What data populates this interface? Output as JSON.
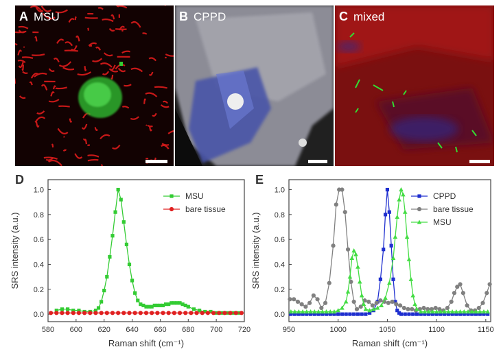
{
  "panels": {
    "A": {
      "letter": "A",
      "label": "MSU"
    },
    "B": {
      "letter": "B",
      "label": "CPPD"
    },
    "C": {
      "letter": "C",
      "label": "mixed"
    }
  },
  "colors": {
    "tissue_red": "#d21a1a",
    "msu_green": "#33cc33",
    "cppd_blue": "#5060c0",
    "bare_gray": "#808080",
    "bare_red": "#e02020"
  },
  "chart_data": [
    {
      "type": "line",
      "panel": "D",
      "xlabel": "Raman shift (cm⁻¹)",
      "ylabel": "SRS intensity (a.u.)",
      "xlim": [
        580,
        720
      ],
      "ylim": [
        -0.06,
        1.08
      ],
      "xticks": [
        580,
        600,
        620,
        640,
        660,
        680,
        700,
        720
      ],
      "yticks": [
        0.0,
        0.2,
        0.4,
        0.6,
        0.8,
        1.0
      ],
      "legend_position": "top-right",
      "series": [
        {
          "name": "MSU",
          "color": "#33cc33",
          "marker": "square",
          "x": [
            586,
            590,
            594,
            598,
            602,
            606,
            610,
            614,
            616,
            618,
            620,
            622,
            624,
            626,
            628,
            630,
            632,
            634,
            636,
            638,
            640,
            642,
            644,
            646,
            648,
            650,
            652,
            654,
            656,
            658,
            660,
            662,
            664,
            666,
            668,
            670,
            672,
            674,
            676,
            678,
            680,
            684,
            688,
            692,
            696,
            700,
            704,
            708,
            712,
            716
          ],
          "y": [
            0.03,
            0.04,
            0.04,
            0.03,
            0.03,
            0.02,
            0.02,
            0.03,
            0.05,
            0.1,
            0.19,
            0.3,
            0.46,
            0.63,
            0.82,
            1.0,
            0.92,
            0.74,
            0.56,
            0.4,
            0.27,
            0.17,
            0.11,
            0.08,
            0.07,
            0.06,
            0.06,
            0.06,
            0.07,
            0.07,
            0.07,
            0.07,
            0.08,
            0.08,
            0.09,
            0.09,
            0.09,
            0.09,
            0.08,
            0.07,
            0.06,
            0.04,
            0.03,
            0.02,
            0.02,
            0.01,
            0.01,
            0.01,
            0.01,
            0.01
          ]
        },
        {
          "name": "bare tissue",
          "color": "#e02020",
          "marker": "circle",
          "x": [
            582,
            586,
            590,
            594,
            598,
            602,
            606,
            610,
            614,
            618,
            622,
            626,
            630,
            634,
            638,
            642,
            646,
            650,
            654,
            658,
            662,
            666,
            670,
            674,
            678,
            682,
            686,
            690,
            694,
            698,
            702,
            706,
            710,
            714,
            718
          ],
          "y": [
            0.01,
            0.01,
            0.01,
            0.01,
            0.01,
            0.01,
            0.01,
            0.01,
            0.01,
            0.01,
            0.01,
            0.01,
            0.01,
            0.01,
            0.01,
            0.01,
            0.01,
            0.01,
            0.01,
            0.01,
            0.01,
            0.01,
            0.01,
            0.01,
            0.01,
            0.01,
            0.01,
            0.01,
            0.01,
            0.01,
            0.01,
            0.01,
            0.01,
            0.01,
            0.01
          ]
        }
      ]
    },
    {
      "type": "line",
      "panel": "E",
      "xlabel": "Raman shift (cm⁻¹)",
      "ylabel": "SRS intensity (a.u.)",
      "xlim": [
        950,
        1155
      ],
      "ylim": [
        -0.06,
        1.08
      ],
      "xticks": [
        950,
        1000,
        1050,
        1100,
        1150
      ],
      "yticks": [
        0.0,
        0.2,
        0.4,
        0.6,
        0.8,
        1.0
      ],
      "legend_position": "top-right",
      "series": [
        {
          "name": "CPPD",
          "color": "#1f2fcf",
          "marker": "square",
          "x": [
            952,
            956,
            960,
            964,
            968,
            972,
            976,
            980,
            984,
            988,
            992,
            996,
            1000,
            1004,
            1008,
            1012,
            1016,
            1020,
            1024,
            1028,
            1032,
            1036,
            1040,
            1043,
            1046,
            1048,
            1050,
            1052,
            1054,
            1056,
            1058,
            1060,
            1062,
            1064,
            1068,
            1072,
            1076,
            1080,
            1084,
            1088,
            1092,
            1096,
            1100,
            1104,
            1108,
            1112,
            1116,
            1120,
            1124,
            1128,
            1132,
            1136,
            1140,
            1144,
            1148,
            1152
          ],
          "y": [
            0.0,
            0.0,
            0.0,
            0.0,
            0.0,
            0.0,
            0.0,
            0.0,
            0.0,
            0.0,
            0.0,
            0.0,
            0.0,
            0.0,
            0.0,
            0.0,
            0.0,
            0.0,
            0.0,
            0.0,
            0.01,
            0.03,
            0.1,
            0.28,
            0.52,
            0.8,
            1.0,
            0.82,
            0.55,
            0.28,
            0.1,
            0.03,
            0.01,
            0.0,
            0.0,
            0.0,
            0.0,
            0.0,
            0.0,
            0.0,
            0.0,
            0.0,
            0.0,
            0.0,
            0.0,
            0.0,
            0.0,
            0.0,
            0.0,
            0.0,
            0.0,
            0.0,
            0.0,
            0.0,
            0.0,
            0.0
          ]
        },
        {
          "name": "bare tissue",
          "color": "#808080",
          "marker": "circle",
          "x": [
            951,
            955,
            959,
            963,
            967,
            971,
            975,
            979,
            983,
            987,
            991,
            995,
            998,
            1001,
            1004,
            1007,
            1010,
            1013,
            1016,
            1019,
            1023,
            1027,
            1031,
            1035,
            1039,
            1043,
            1047,
            1051,
            1055,
            1059,
            1063,
            1067,
            1071,
            1075,
            1079,
            1083,
            1087,
            1091,
            1095,
            1099,
            1103,
            1107,
            1111,
            1115,
            1118,
            1121,
            1124,
            1127,
            1131,
            1135,
            1139,
            1143,
            1147,
            1151,
            1154
          ],
          "y": [
            0.12,
            0.12,
            0.1,
            0.08,
            0.06,
            0.09,
            0.15,
            0.12,
            0.05,
            0.09,
            0.25,
            0.55,
            0.88,
            1.0,
            1.0,
            0.82,
            0.52,
            0.26,
            0.1,
            0.04,
            0.06,
            0.11,
            0.1,
            0.07,
            0.09,
            0.11,
            0.1,
            0.09,
            0.1,
            0.08,
            0.07,
            0.05,
            0.04,
            0.04,
            0.03,
            0.04,
            0.05,
            0.04,
            0.04,
            0.05,
            0.04,
            0.03,
            0.05,
            0.1,
            0.17,
            0.22,
            0.24,
            0.17,
            0.07,
            0.03,
            0.03,
            0.05,
            0.09,
            0.17,
            0.24
          ]
        },
        {
          "name": "MSU",
          "color": "#44dd44",
          "marker": "triangle",
          "x": [
            952,
            956,
            960,
            964,
            968,
            972,
            976,
            980,
            984,
            988,
            992,
            996,
            1000,
            1004,
            1008,
            1010,
            1012,
            1014,
            1016,
            1018,
            1020,
            1022,
            1024,
            1026,
            1028,
            1032,
            1036,
            1040,
            1044,
            1048,
            1052,
            1056,
            1058,
            1060,
            1062,
            1064,
            1066,
            1068,
            1070,
            1072,
            1074,
            1076,
            1078,
            1080,
            1084,
            1088,
            1092,
            1096,
            1100,
            1104,
            1108,
            1112,
            1116,
            1120,
            1124,
            1128,
            1132,
            1136,
            1140,
            1144,
            1148,
            1152
          ],
          "y": [
            0.02,
            0.02,
            0.02,
            0.02,
            0.02,
            0.02,
            0.02,
            0.02,
            0.02,
            0.02,
            0.02,
            0.02,
            0.03,
            0.05,
            0.1,
            0.18,
            0.3,
            0.45,
            0.51,
            0.48,
            0.38,
            0.26,
            0.15,
            0.08,
            0.04,
            0.03,
            0.04,
            0.05,
            0.07,
            0.13,
            0.25,
            0.45,
            0.62,
            0.78,
            0.92,
            1.0,
            0.96,
            0.82,
            0.62,
            0.44,
            0.28,
            0.15,
            0.08,
            0.04,
            0.02,
            0.02,
            0.02,
            0.02,
            0.02,
            0.02,
            0.02,
            0.02,
            0.02,
            0.02,
            0.02,
            0.02,
            0.02,
            0.02,
            0.02,
            0.02,
            0.02,
            0.02
          ]
        }
      ]
    }
  ]
}
